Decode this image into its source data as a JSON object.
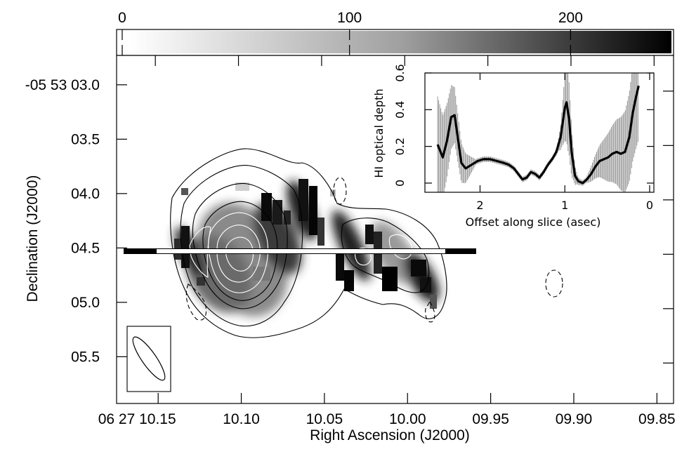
{
  "chart_data": [
    {
      "type": "image",
      "xlabel": "Right Ascension (J2000)",
      "ylabel": "Declination (J2000)",
      "x_ticks": [
        "06 27 10.15",
        "10.10",
        "10.05",
        "10.00",
        "09.95",
        "09.90",
        "09.85"
      ],
      "x_tick_values": [
        10.15,
        10.1,
        10.05,
        10.0,
        9.95,
        9.9,
        9.85
      ],
      "y_ticks": [
        "-05 53 03.0",
        "03.5",
        "04.0",
        "04.5",
        "05.0",
        "05.5"
      ],
      "y_tick_values": [
        3.0,
        3.5,
        4.0,
        4.5,
        5.0,
        5.5
      ],
      "xlim": [
        10.175,
        9.84
      ],
      "ylim": [
        5.93,
        2.73
      ],
      "slice_dec": 4.58,
      "slice_ra_range": [
        10.168,
        9.938
      ],
      "colorbar": {
        "orientation": "horizontal",
        "position": "top",
        "ticks": [
          "0",
          "100",
          "200"
        ],
        "tick_values": [
          0,
          100,
          200
        ],
        "range": [
          0,
          245
        ],
        "colormap": "white-to-black grayscale"
      },
      "contours": "white and black contours over grayscale HI absorption map; dashed negative contours",
      "beam": "elliptical beam shown in lower-left box"
    },
    {
      "type": "line",
      "xlabel": "Offset along slice (asec)",
      "ylabel": "HI optical depth",
      "x_ticks": [
        "2",
        "1",
        "0"
      ],
      "x_tick_values": [
        2,
        1,
        0
      ],
      "y_ticks": [
        "0",
        "0.2",
        "0.4",
        "0.6"
      ],
      "y_tick_values": [
        0,
        0.2,
        0.4,
        0.6
      ],
      "xlim": [
        2.65,
        -0.05
      ],
      "ylim": [
        -0.05,
        0.6
      ],
      "series": [
        {
          "x": [
            2.5,
            2.44,
            2.39,
            2.34,
            2.3,
            2.26,
            2.22,
            2.17,
            2.1,
            2.03,
            1.96,
            1.88,
            1.8,
            1.72,
            1.66,
            1.6,
            1.55,
            1.5,
            1.45,
            1.4,
            1.35,
            1.3,
            1.25,
            1.2,
            1.15,
            1.1,
            1.05,
            1.0,
            0.98,
            0.95,
            0.92,
            0.88,
            0.84,
            0.79,
            0.74,
            0.69,
            0.64,
            0.59,
            0.54,
            0.49,
            0.44,
            0.39,
            0.34,
            0.29,
            0.24,
            0.2,
            0.16,
            0.13
          ],
          "y": [
            0.21,
            0.14,
            0.23,
            0.36,
            0.37,
            0.24,
            0.11,
            0.08,
            0.1,
            0.12,
            0.13,
            0.13,
            0.12,
            0.11,
            0.1,
            0.08,
            0.05,
            0.02,
            0.03,
            0.06,
            0.05,
            0.03,
            0.06,
            0.1,
            0.13,
            0.17,
            0.25,
            0.41,
            0.44,
            0.35,
            0.17,
            0.04,
            0.01,
            0.0,
            0.02,
            0.05,
            0.09,
            0.12,
            0.13,
            0.14,
            0.16,
            0.17,
            0.16,
            0.17,
            0.25,
            0.38,
            0.47,
            0.53
          ]
        }
      ],
      "error_bars": "vertical gray error bars along the curve"
    }
  ]
}
